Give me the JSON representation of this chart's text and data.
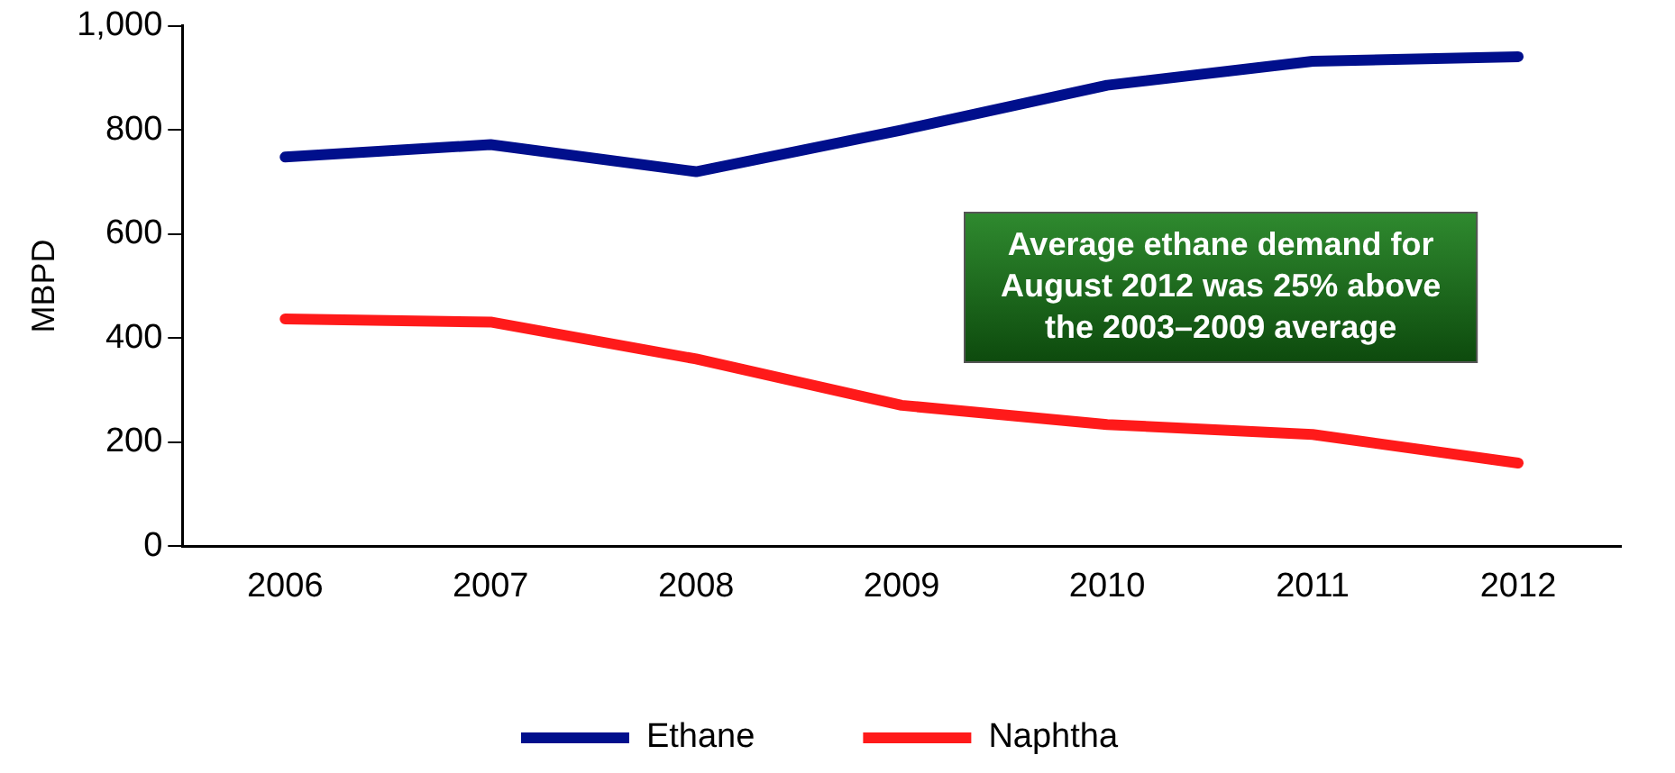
{
  "chart_data": {
    "type": "line",
    "ylabel": "MBPD",
    "categories": [
      "2006",
      "2007",
      "2008",
      "2009",
      "2010",
      "2011",
      "2012"
    ],
    "series": [
      {
        "name": "Ethane",
        "color": "#000f8c",
        "values": [
          748,
          772,
          720,
          800,
          886,
          932,
          941
        ]
      },
      {
        "name": "Naphtha",
        "color": "#ff1a1a",
        "values": [
          437,
          431,
          360,
          271,
          234,
          215,
          160
        ]
      }
    ],
    "ylim": [
      0,
      1000
    ],
    "yticks": [
      0,
      {
        "value": 200,
        "label": "200"
      },
      {
        "value": 400,
        "label": "400"
      },
      {
        "value": 600,
        "label": "600"
      },
      {
        "value": 800,
        "label": "800"
      },
      {
        "value": 1000,
        "label": "1,000"
      }
    ],
    "annotations": [
      "Average ethane demand for\nAugust 2012 was 25% above\nthe 2003–2009 average"
    ],
    "grid": false,
    "legend": "bottom",
    "marker": "none",
    "line_style": "solid"
  }
}
